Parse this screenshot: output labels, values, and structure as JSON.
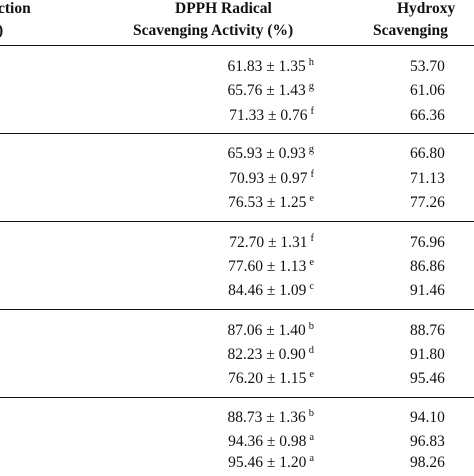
{
  "headers": {
    "col1_line1": "ction",
    "col1_line2": ")",
    "col2_line1": "DPPH Radical",
    "col2_line2": "Scavenging Activity (%)",
    "col3_line1": "Hydroxy",
    "col3_line2": "Scavenging"
  },
  "groups": [
    {
      "rows": [
        {
          "dpph": "61.83 ± 1.35",
          "dpph_sup": "h",
          "hyd": "53.70"
        },
        {
          "dpph": "65.76 ± 1.43",
          "dpph_sup": "g",
          "hyd": "61.06"
        },
        {
          "dpph": "71.33 ± 0.76",
          "dpph_sup": "f",
          "hyd": "66.36"
        }
      ]
    },
    {
      "rows": [
        {
          "dpph": "65.93 ± 0.93",
          "dpph_sup": "g",
          "hyd": "66.80"
        },
        {
          "dpph": "70.93 ± 0.97",
          "dpph_sup": "f",
          "hyd": "71.13"
        },
        {
          "dpph": "76.53 ± 1.25",
          "dpph_sup": "e",
          "hyd": "77.26"
        }
      ]
    },
    {
      "rows": [
        {
          "dpph": "72.70 ± 1.31",
          "dpph_sup": "f",
          "hyd": "76.96"
        },
        {
          "dpph": "77.60 ± 1.13",
          "dpph_sup": "e",
          "hyd": "86.86"
        },
        {
          "dpph": "84.46 ± 1.09",
          "dpph_sup": "c",
          "hyd": "91.46"
        }
      ]
    },
    {
      "rows": [
        {
          "dpph": "87.06 ± 1.40",
          "dpph_sup": "b",
          "hyd": "88.76"
        },
        {
          "dpph": "82.23 ± 0.90",
          "dpph_sup": "d",
          "hyd": "91.80"
        },
        {
          "dpph": "76.20 ± 1.15",
          "dpph_sup": "e",
          "hyd": "95.46"
        }
      ]
    },
    {
      "rows": [
        {
          "dpph": "88.73 ± 1.36",
          "dpph_sup": "b",
          "hyd": "94.10"
        },
        {
          "dpph": "94.36 ± 0.98",
          "dpph_sup": "a",
          "hyd": "96.83"
        },
        {
          "dpph": "95.46 ± 1.20",
          "dpph_sup": "a",
          "hyd": "98.26"
        }
      ]
    }
  ]
}
